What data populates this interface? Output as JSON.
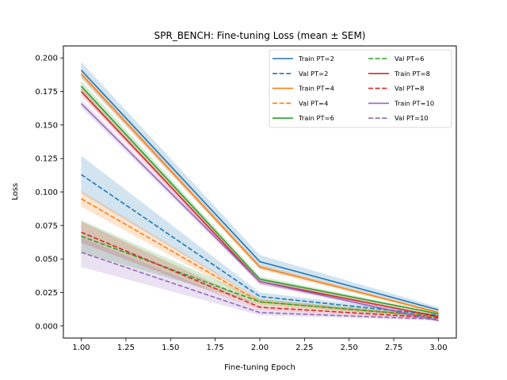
{
  "chart_data": {
    "type": "line",
    "title": "SPR_BENCH: Fine-tuning Loss (mean ± SEM)",
    "xlabel": "Fine-tuning Epoch",
    "ylabel": "Loss",
    "xlim": [
      0.9,
      3.1
    ],
    "ylim": [
      -0.009,
      0.209
    ],
    "xticks": [
      "1.00",
      "1.25",
      "1.50",
      "1.75",
      "2.00",
      "2.25",
      "2.50",
      "2.75",
      "3.00"
    ],
    "yticks": [
      "0.000",
      "0.025",
      "0.050",
      "0.075",
      "0.100",
      "0.125",
      "0.150",
      "0.175",
      "0.200"
    ],
    "x": [
      1,
      2,
      3
    ],
    "legend_position": "top-right",
    "grid": false,
    "series": [
      {
        "name": "Train PT=2",
        "color": "#1f77b4",
        "dash": false,
        "values": [
          0.191,
          0.048,
          0.012
        ],
        "sem": [
          0.006,
          0.005,
          0.002
        ]
      },
      {
        "name": "Val PT=2",
        "color": "#1f77b4",
        "dash": true,
        "values": [
          0.113,
          0.022,
          0.008
        ],
        "sem": [
          0.014,
          0.003,
          0.001
        ]
      },
      {
        "name": "Train PT=4",
        "color": "#ff7f0e",
        "dash": false,
        "values": [
          0.188,
          0.044,
          0.01
        ],
        "sem": [
          0.003,
          0.002,
          0.001
        ]
      },
      {
        "name": "Val PT=4",
        "color": "#ff7f0e",
        "dash": true,
        "values": [
          0.095,
          0.018,
          0.007
        ],
        "sem": [
          0.006,
          0.002,
          0.001
        ]
      },
      {
        "name": "Train PT=6",
        "color": "#2ca02c",
        "dash": false,
        "values": [
          0.179,
          0.035,
          0.009
        ],
        "sem": [
          0.004,
          0.002,
          0.001
        ]
      },
      {
        "name": "Val PT=6",
        "color": "#2ca02c",
        "dash": true,
        "values": [
          0.067,
          0.018,
          0.007
        ],
        "sem": [
          0.012,
          0.002,
          0.001
        ]
      },
      {
        "name": "Train PT=8",
        "color": "#d62728",
        "dash": false,
        "values": [
          0.175,
          0.033,
          0.007
        ],
        "sem": [
          0.003,
          0.002,
          0.001
        ]
      },
      {
        "name": "Val PT=8",
        "color": "#d62728",
        "dash": true,
        "values": [
          0.07,
          0.014,
          0.006
        ],
        "sem": [
          0.008,
          0.002,
          0.001
        ]
      },
      {
        "name": "Train PT=10",
        "color": "#9467bd",
        "dash": false,
        "values": [
          0.166,
          0.033,
          0.004
        ],
        "sem": [
          0.003,
          0.002,
          0.001
        ]
      },
      {
        "name": "Val PT=10",
        "color": "#9467bd",
        "dash": true,
        "values": [
          0.055,
          0.01,
          0.005
        ],
        "sem": [
          0.011,
          0.002,
          0.001
        ]
      }
    ]
  }
}
